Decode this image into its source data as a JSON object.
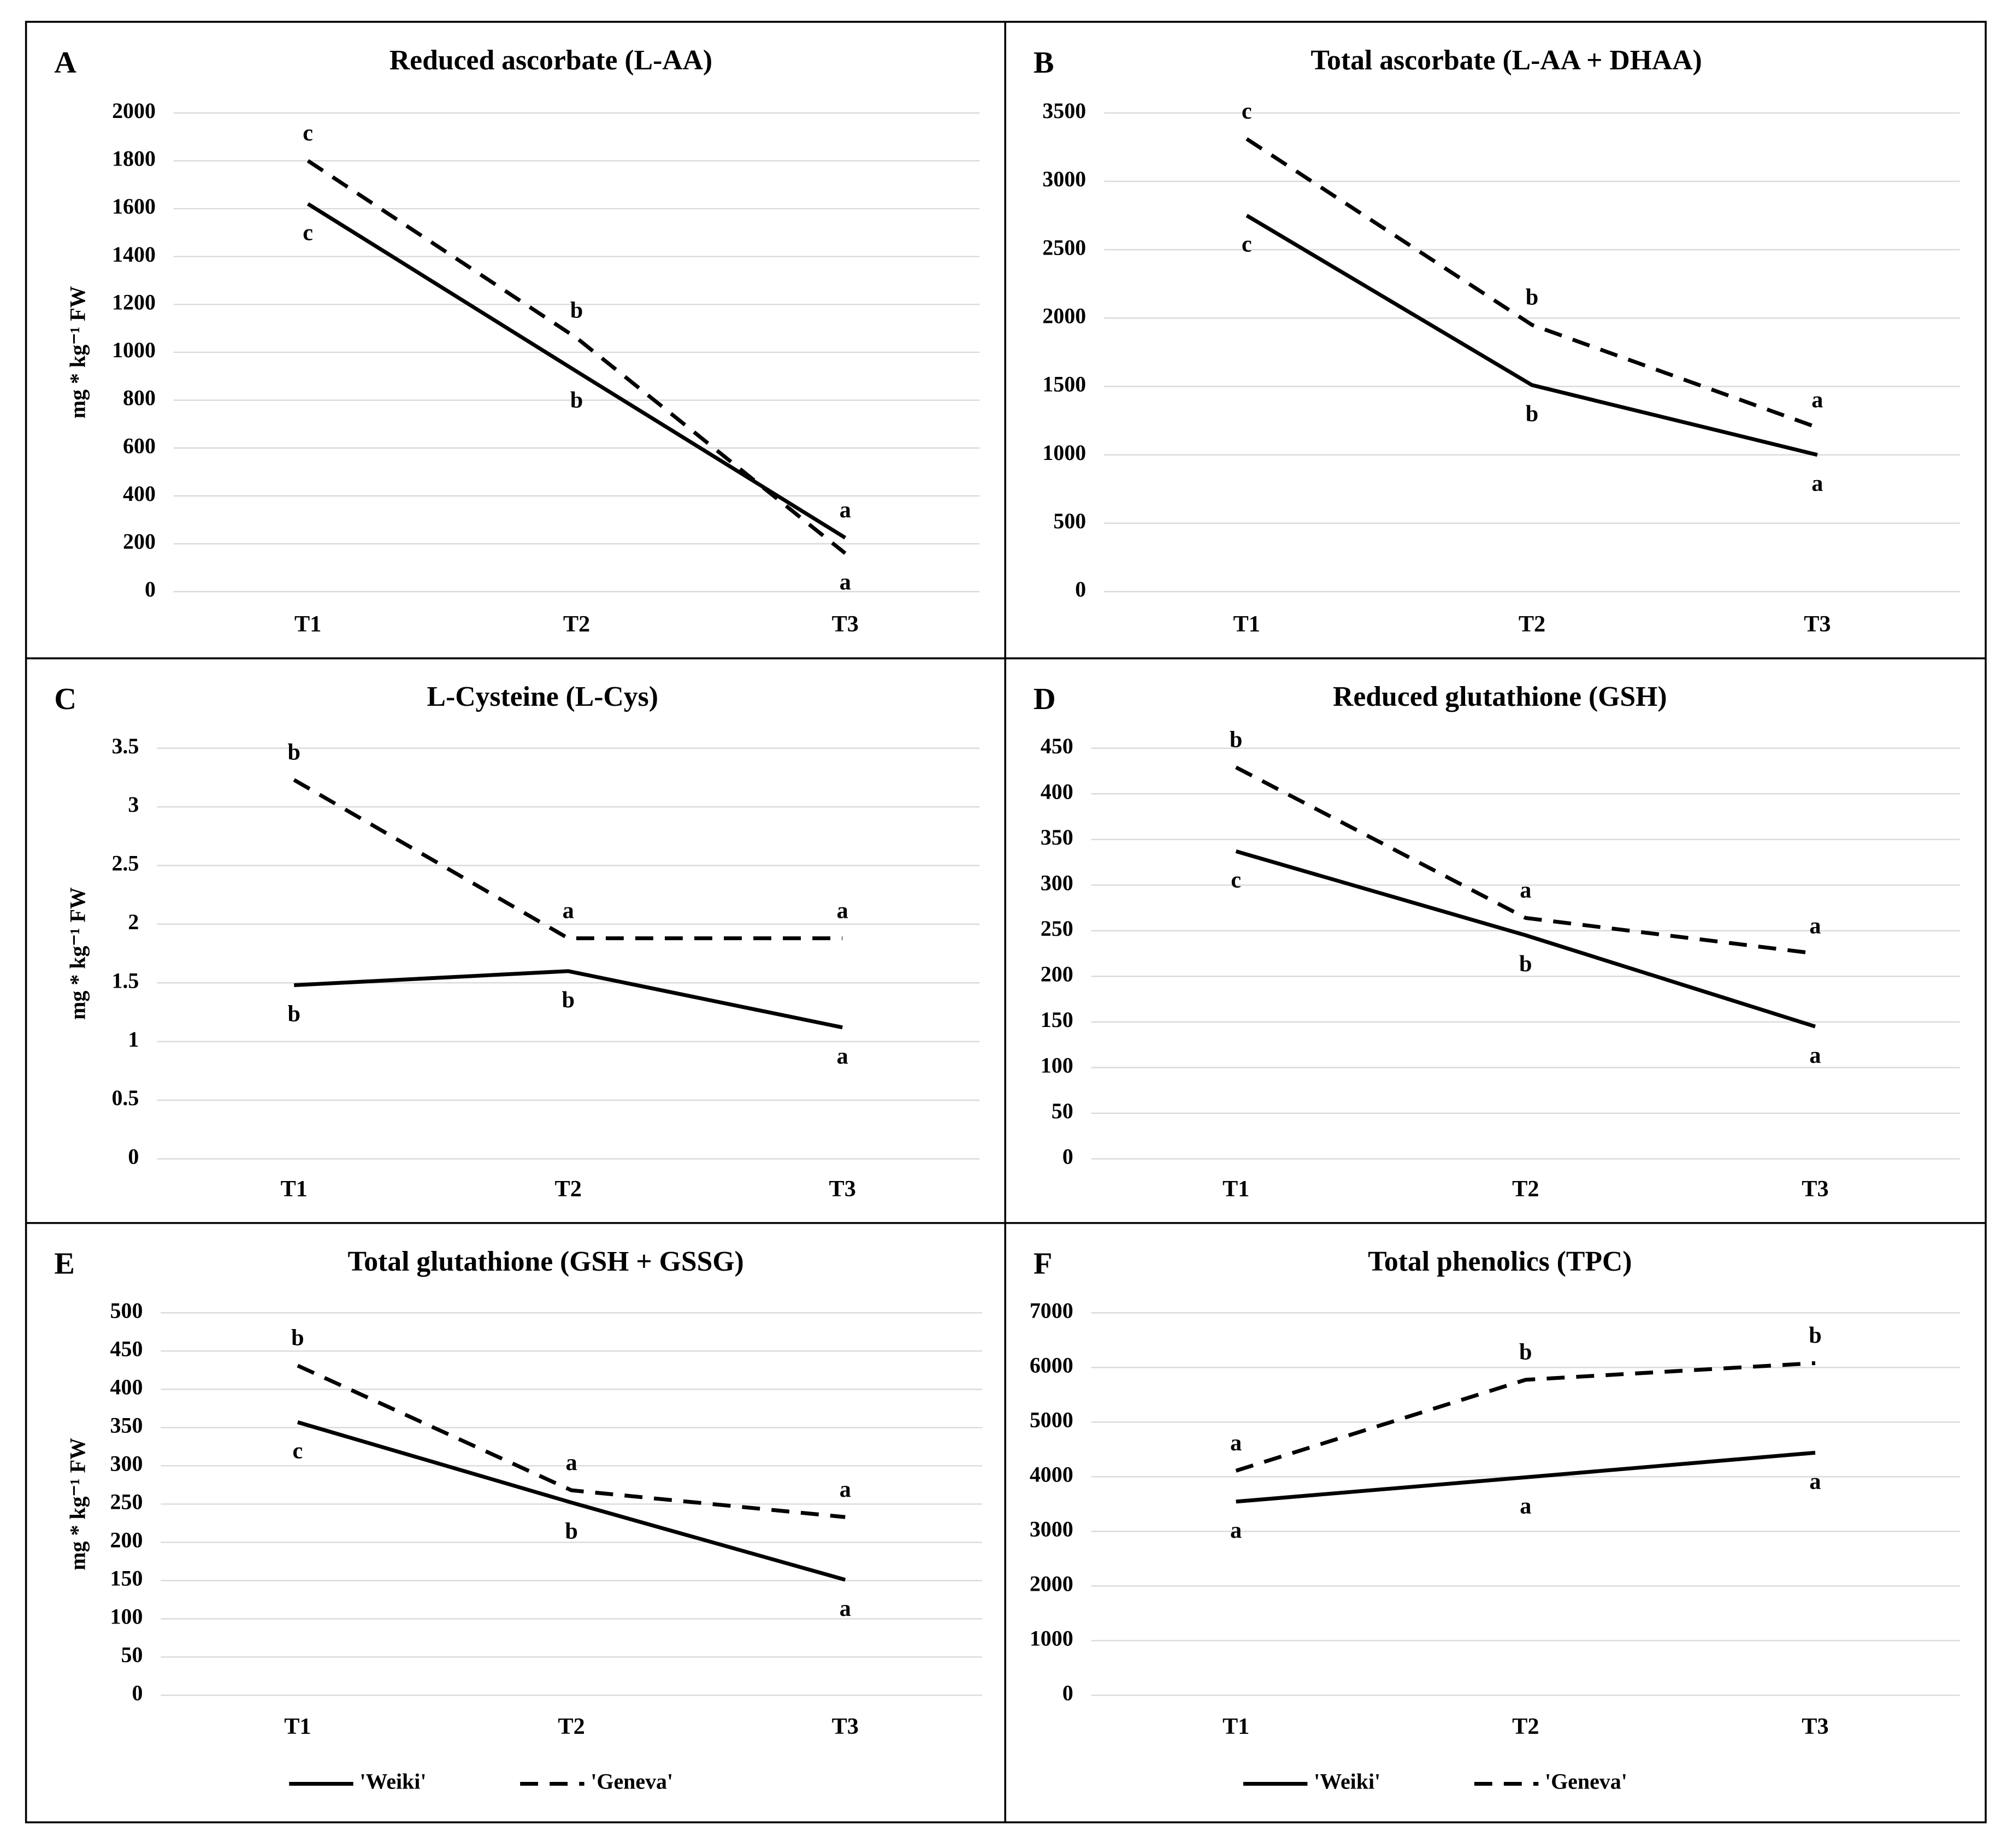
{
  "chart_data": [
    {
      "type": "line",
      "panel": "A",
      "title": "Reduced ascorbate (L-AA)",
      "ylabel": "mg * kg⁻¹ FW",
      "categories": [
        "T1",
        "T2",
        "T3"
      ],
      "series": [
        {
          "color": "#000000",
          "line_style": "solid",
          "values": [
            1620,
            920,
            225
          ],
          "letters": [
            "c",
            "b",
            "a"
          ]
        },
        {
          "color": "#000000",
          "line_style": "dashed",
          "values": [
            1800,
            1060,
            160
          ],
          "letters": [
            "c",
            "b",
            "a"
          ]
        }
      ],
      "ylim": [
        0,
        2000
      ],
      "yticks": [
        0,
        200,
        400,
        600,
        800,
        1000,
        1200,
        1400,
        1600,
        1800,
        2000
      ],
      "grid": true
    },
    {
      "type": "line",
      "panel": "B",
      "title": "Total ascorbate (L-AA + DHAA)",
      "categories": [
        "T1",
        "T2",
        "T3"
      ],
      "series": [
        {
          "color": "#000000",
          "line_style": "solid",
          "values": [
            2750,
            1510,
            1000
          ],
          "letters": [
            "c",
            "b",
            "a"
          ]
        },
        {
          "color": "#000000",
          "line_style": "dashed",
          "values": [
            3310,
            1950,
            1200
          ],
          "letters": [
            "c",
            "b",
            "a"
          ]
        }
      ],
      "ylim": [
        0,
        3500
      ],
      "yticks": [
        0,
        500,
        1000,
        1500,
        2000,
        2500,
        3000,
        3500
      ],
      "grid": true
    },
    {
      "type": "line",
      "panel": "C",
      "title": "L-Cysteine (L-Cys)",
      "ylabel": "mg * kg⁻¹ FW",
      "categories": [
        "T1",
        "T2",
        "T3"
      ],
      "series": [
        {
          "color": "#000000",
          "line_style": "solid",
          "values": [
            1.48,
            1.6,
            1.12
          ],
          "letters": [
            "b",
            "b",
            "a"
          ]
        },
        {
          "color": "#000000",
          "line_style": "dashed",
          "values": [
            3.23,
            1.88,
            1.88
          ],
          "letters": [
            "b",
            "a",
            "a"
          ]
        }
      ],
      "ylim": [
        0,
        3.5
      ],
      "yticks": [
        0,
        0.5,
        1,
        1.5,
        2,
        2.5,
        3,
        3.5
      ],
      "grid": true
    },
    {
      "type": "line",
      "panel": "D",
      "title": "Reduced glutathione (GSH)",
      "categories": [
        "T1",
        "T2",
        "T3"
      ],
      "series": [
        {
          "color": "#000000",
          "line_style": "solid",
          "values": [
            337,
            245,
            145
          ],
          "letters": [
            "c",
            "b",
            "a"
          ]
        },
        {
          "color": "#000000",
          "line_style": "dashed",
          "values": [
            429,
            264,
            225
          ],
          "letters": [
            "b",
            "a",
            "a"
          ]
        }
      ],
      "ylim": [
        0,
        450
      ],
      "yticks": [
        0,
        50,
        100,
        150,
        200,
        250,
        300,
        350,
        400,
        450
      ],
      "grid": true
    },
    {
      "type": "line",
      "panel": "E",
      "title": "Total glutathione (GSH + GSSG)",
      "ylabel": "mg * kg⁻¹ FW",
      "categories": [
        "T1",
        "T2",
        "T3"
      ],
      "series": [
        {
          "name": "'Weiki'",
          "color": "#000000",
          "line_style": "solid",
          "values": [
            357,
            252,
            151
          ],
          "letters": [
            "c",
            "b",
            "a"
          ]
        },
        {
          "name": "'Geneva'",
          "color": "#000000",
          "line_style": "dashed",
          "values": [
            431,
            268,
            233
          ],
          "letters": [
            "b",
            "a",
            "a"
          ]
        }
      ],
      "ylim": [
        0,
        500
      ],
      "yticks": [
        0,
        50,
        100,
        150,
        200,
        250,
        300,
        350,
        400,
        450,
        500
      ],
      "grid": true,
      "legend": "bottom"
    },
    {
      "type": "line",
      "panel": "F",
      "title": "Total phenolics (TPC)",
      "categories": [
        "T1",
        "T2",
        "T3"
      ],
      "series": [
        {
          "name": "'Weiki'",
          "color": "#000000",
          "line_style": "solid",
          "values": [
            3545,
            3990,
            4440
          ],
          "letters": [
            "a",
            "a",
            "a"
          ]
        },
        {
          "name": "'Geneva'",
          "color": "#000000",
          "line_style": "dashed",
          "values": [
            4110,
            5775,
            6080
          ],
          "letters": [
            "a",
            "b",
            "b"
          ]
        }
      ],
      "ylim": [
        0,
        7000
      ],
      "yticks": [
        0,
        1000,
        2000,
        3000,
        4000,
        5000,
        6000,
        7000
      ],
      "grid": true,
      "legend": "bottom"
    }
  ]
}
